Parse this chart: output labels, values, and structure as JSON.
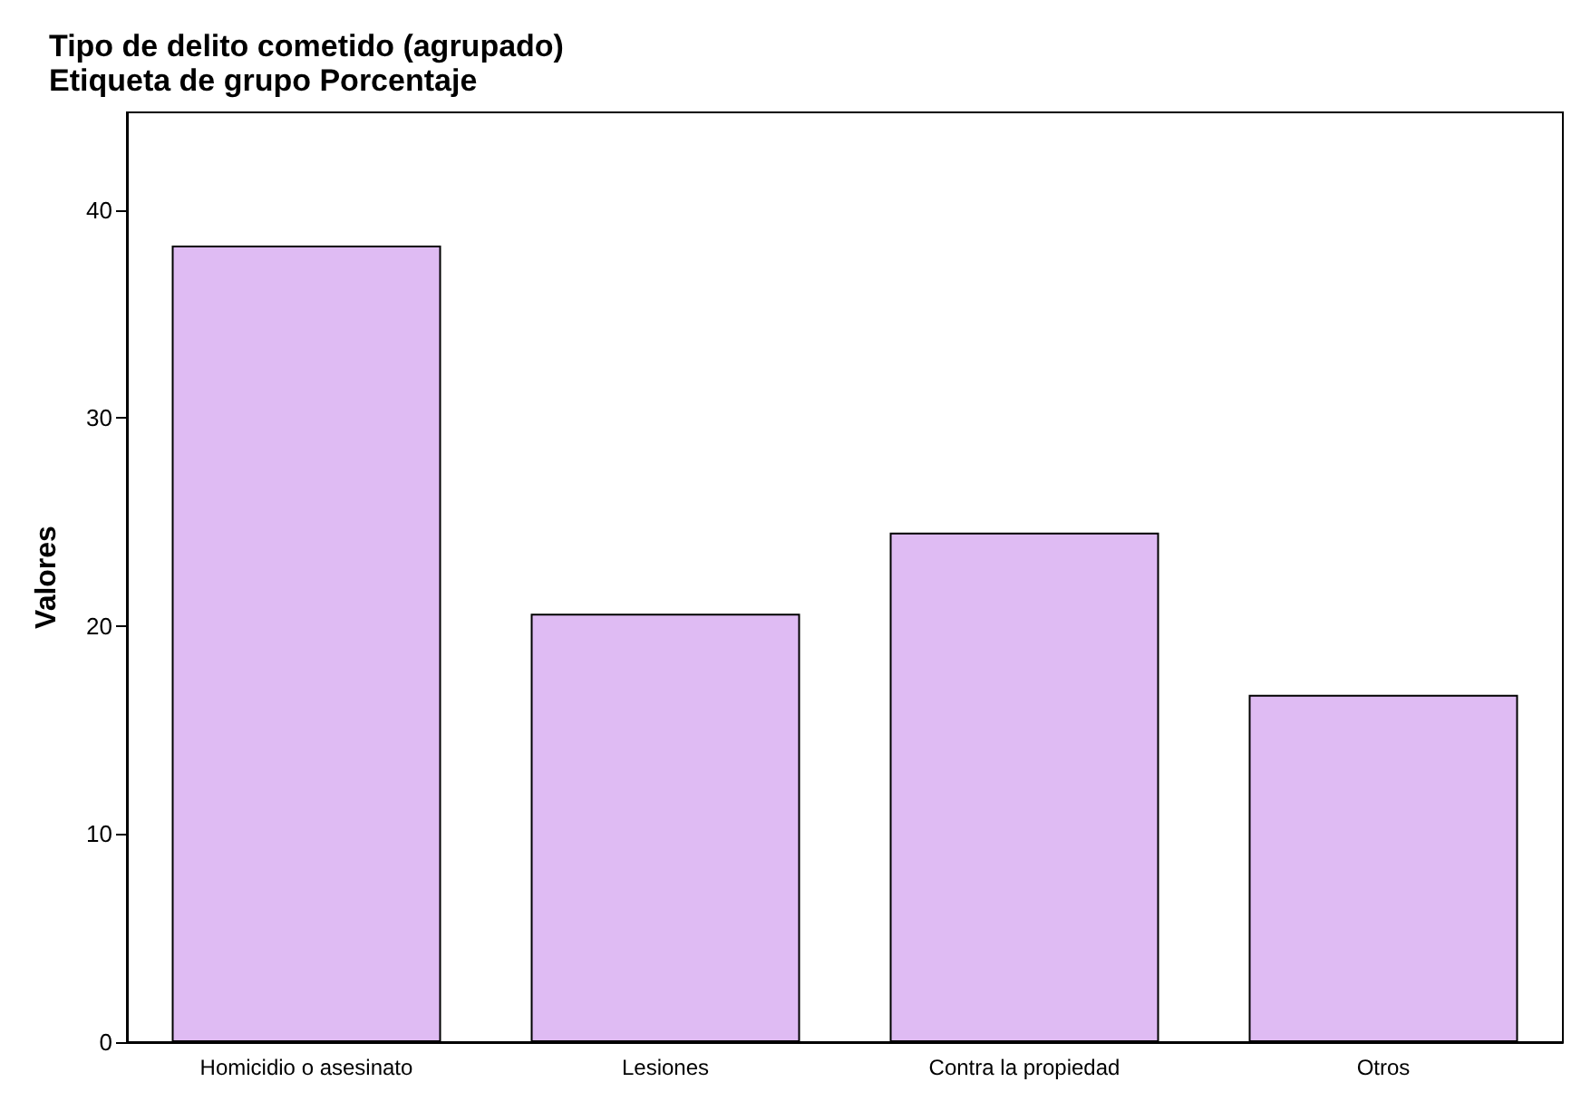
{
  "chart_data": {
    "type": "bar",
    "title": "Tipo de delito cometido (agrupado)",
    "subtitle": "Etiqueta de grupo Porcentaje",
    "ylabel": "Valores",
    "categories": [
      "Homicidio o asesinato",
      "Lesiones",
      "Contra la propiedad",
      "Otros"
    ],
    "values": [
      38.3,
      20.6,
      24.5,
      16.7
    ],
    "color": "#dfbbf3",
    "ylim": [
      0,
      44.7
    ],
    "yticks": [
      0,
      10,
      20,
      30,
      40
    ],
    "grid": false
  }
}
